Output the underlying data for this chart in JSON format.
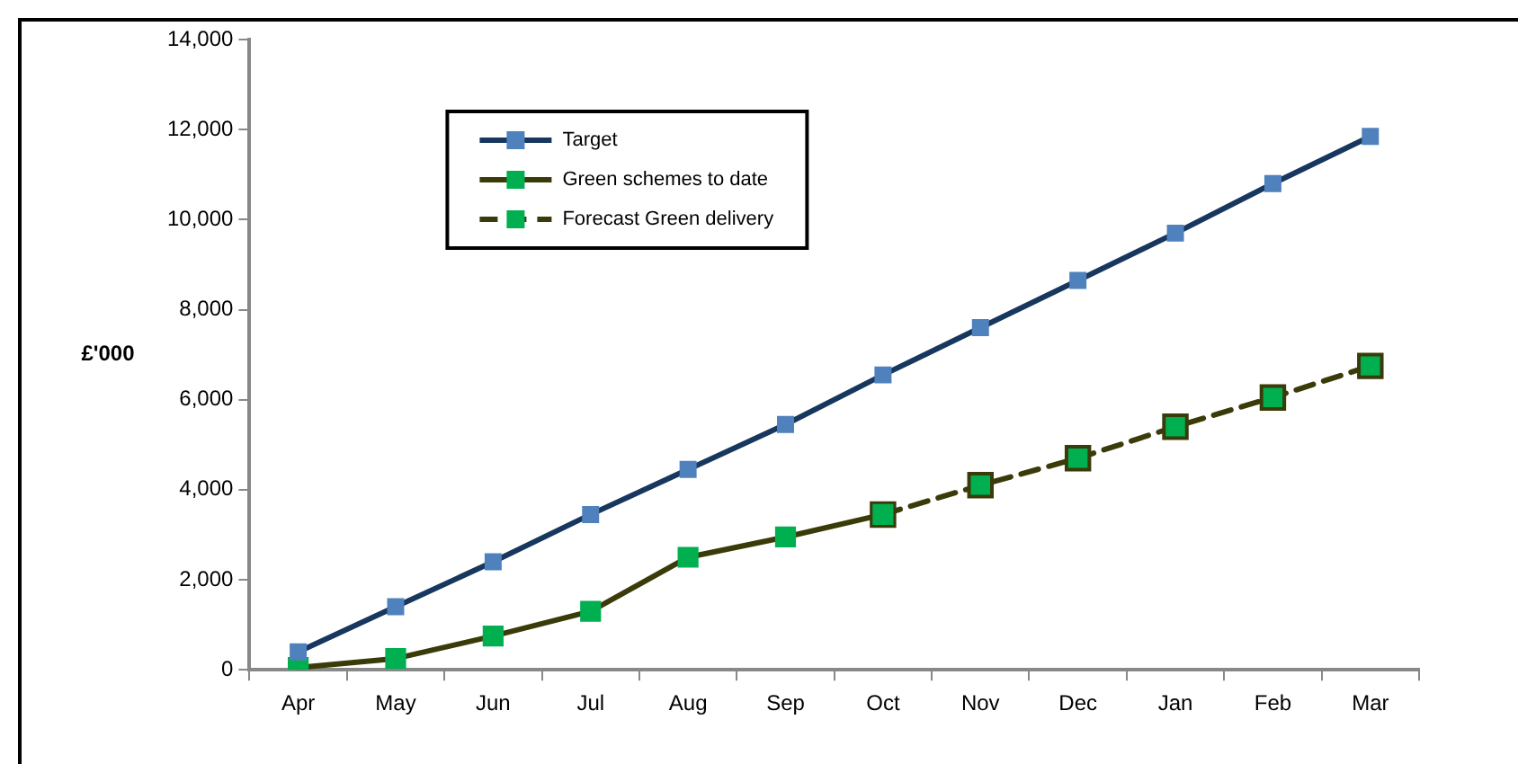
{
  "chart_data": {
    "type": "line",
    "ylabel": "£'000",
    "categories": [
      "Apr",
      "May",
      "Jun",
      "Jul",
      "Aug",
      "Sep",
      "Oct",
      "Nov",
      "Dec",
      "Jan",
      "Feb",
      "Mar"
    ],
    "series": [
      {
        "name": "Target",
        "color": "#17375e",
        "colors": [
          "#4f81bd",
          "#4f81bd",
          "#4f81bd",
          "#4f81bd",
          "#4f81bd",
          "#4f81bd",
          "#4f81bd",
          "#4f81bd",
          "#4f81bd",
          "#4f81bd",
          "#4f81bd",
          "#4f81bd"
        ],
        "values": [
          400,
          1400,
          2400,
          3450,
          4450,
          5450,
          6550,
          7600,
          8650,
          9700,
          10800,
          11850
        ]
      },
      {
        "name": "Green schemes to date",
        "color": "#3b3b0a",
        "colors": [
          "#00b050",
          "#00b050",
          "#00b050",
          "#00b050",
          "#00b050",
          "#00b050",
          "#00b050",
          null,
          null,
          null,
          null,
          null
        ],
        "values": [
          50,
          250,
          750,
          1300,
          2500,
          2950,
          3450,
          null,
          null,
          null,
          null,
          null
        ]
      },
      {
        "name": "Forecast Green delivery",
        "color": "#3b3b0a",
        "line_style": "dashed",
        "colors": [
          null,
          null,
          null,
          null,
          null,
          null,
          "#00b050",
          "#00b050",
          "#00b050",
          "#00b050",
          "#00b050",
          "#00b050"
        ],
        "values": [
          null,
          null,
          null,
          null,
          null,
          null,
          3450,
          4100,
          4700,
          5400,
          6050,
          6750
        ]
      }
    ],
    "ylim": [
      0,
      14000
    ],
    "yticks": [
      {
        "value": 0,
        "label": "0"
      },
      {
        "value": 2000,
        "label": "2,000"
      },
      {
        "value": 4000,
        "label": "4,000"
      },
      {
        "value": 6000,
        "label": "6,000"
      },
      {
        "value": 8000,
        "label": "8,000"
      },
      {
        "value": 10000,
        "label": "10,000"
      },
      {
        "value": 12000,
        "label": "12,000"
      },
      {
        "value": 14000,
        "label": "14,000"
      }
    ],
    "grid": false,
    "legend": "top left",
    "marker": "square",
    "line_style": "solid"
  }
}
